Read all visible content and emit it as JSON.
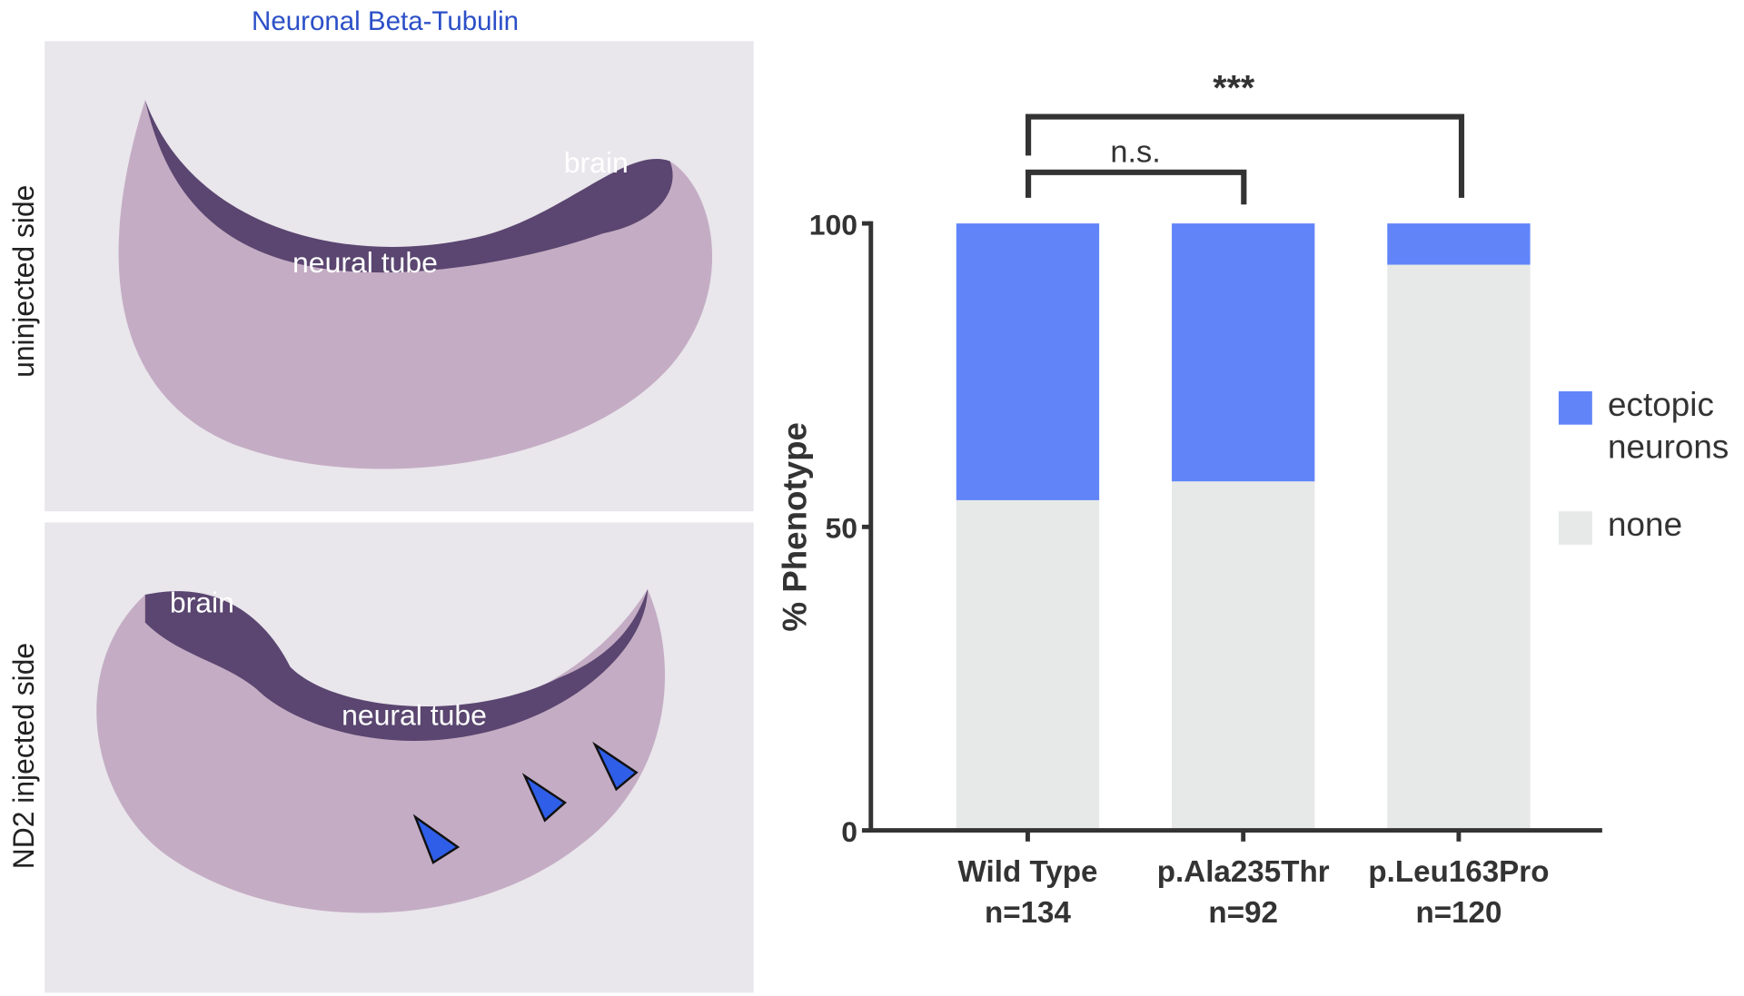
{
  "figure": {
    "title": "Neuronal Beta-Tubulin",
    "panels": [
      {
        "side_label": "uninjected side",
        "labels": [
          "brain",
          "neural tube"
        ]
      },
      {
        "side_label": "ND2 injected side",
        "labels": [
          "brain",
          "neural tube"
        ]
      }
    ]
  },
  "chart_data": {
    "type": "stacked_bar",
    "y_label": "% Phenotype",
    "categories": [
      [
        "Wild Type",
        "n=134"
      ],
      [
        "p.Ala235Thr",
        "n=92"
      ],
      [
        "p.Leu163Pro",
        "n=120"
      ]
    ],
    "series": [
      {
        "name": "none",
        "color": "#e6e9e7",
        "values": [
          54.4,
          57.5,
          93.2
        ]
      },
      {
        "name": "ectopic neurons",
        "color": "#6185f8",
        "values": [
          45.6,
          42.5,
          6.8
        ]
      }
    ],
    "ylim": [
      0,
      100
    ],
    "yticks": [
      0,
      50,
      100
    ],
    "annotations": [
      "***",
      "n.s."
    ]
  }
}
